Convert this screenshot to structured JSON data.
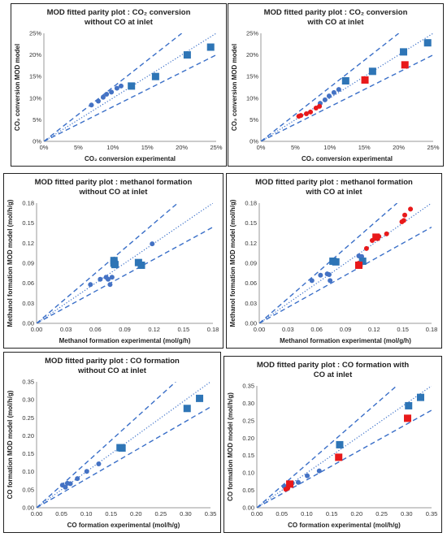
{
  "chart_data": [
    {
      "type": "scatter",
      "title": "MOD fitted parity plot : CO₂ conversion without CO at inlet",
      "xlabel": "CO₂ conversion experimental",
      "ylabel": "CO₂ conversion MOD  model",
      "xlim": [
        0,
        25
      ],
      "ylim": [
        0,
        25
      ],
      "ticks": [
        "0%",
        "5%",
        "10%",
        "15%",
        "20%",
        "25%"
      ],
      "tick_values": [
        0,
        5,
        10,
        15,
        20,
        25
      ],
      "grid": false,
      "series": [
        {
          "marker": "circle",
          "color": "#4472C4",
          "points": [
            [
              6.9,
              8.4
            ],
            [
              7.9,
              9.3
            ],
            [
              8.6,
              10.2
            ],
            [
              9.1,
              10.9
            ],
            [
              9.8,
              11.4
            ],
            [
              10.6,
              12.3
            ],
            [
              11.2,
              12.8
            ]
          ]
        },
        {
          "marker": "square",
          "color": "#2E75B6",
          "points": [
            [
              12.7,
              12.8
            ],
            [
              16.2,
              15.0
            ],
            [
              20.8,
              20.0
            ],
            [
              24.2,
              21.8
            ]
          ]
        }
      ],
      "lines": [
        {
          "style": "dotted",
          "slope": 1.0
        },
        {
          "style": "dashed",
          "slope": 1.25
        },
        {
          "style": "dashed",
          "slope": 0.8
        }
      ]
    },
    {
      "type": "scatter",
      "title": "MOD fitted parity plot : CO₂ conversion with CO at inlet",
      "xlabel": "CO₂ conversion experimental",
      "ylabel": "CO₂ conversion MOD  model",
      "xlim": [
        0,
        25
      ],
      "ylim": [
        0,
        25
      ],
      "ticks": [
        "0%",
        "5%",
        "10%",
        "15%",
        "20%",
        "25%"
      ],
      "tick_values": [
        0,
        5,
        10,
        15,
        20,
        25
      ],
      "grid": false,
      "series": [
        {
          "marker": "circle",
          "color": "#4472C4",
          "points": [
            [
              8.6,
              8.8
            ],
            [
              9.3,
              9.6
            ],
            [
              9.9,
              10.5
            ],
            [
              10.6,
              11.3
            ],
            [
              11.3,
              12.0
            ]
          ]
        },
        {
          "marker": "circle",
          "color": "#E8191A",
          "points": [
            [
              5.5,
              5.8
            ],
            [
              5.8,
              6.0
            ],
            [
              6.6,
              6.4
            ],
            [
              7.2,
              6.8
            ],
            [
              8.0,
              7.7
            ],
            [
              8.5,
              8.1
            ]
          ]
        },
        {
          "marker": "square",
          "color": "#2E75B6",
          "points": [
            [
              12.3,
              14.0
            ],
            [
              16.2,
              16.2
            ],
            [
              20.7,
              20.7
            ],
            [
              24.2,
              22.8
            ]
          ]
        },
        {
          "marker": "square",
          "color": "#E8191A",
          "points": [
            [
              15.1,
              14.2
            ],
            [
              20.9,
              17.7
            ]
          ]
        }
      ],
      "lines": [
        {
          "style": "dotted",
          "slope": 1.0
        },
        {
          "style": "dashed",
          "slope": 1.25
        },
        {
          "style": "dashed",
          "slope": 0.8
        }
      ]
    },
    {
      "type": "scatter",
      "title": "MOD fitted parity plot : methanol formation without CO at inlet",
      "xlabel": "Methanol formation experimental (mol/g/h)",
      "ylabel": "Methanol formation MOD model (mol/h/g)",
      "xlim": [
        0,
        0.18
      ],
      "ylim": [
        0,
        0.18
      ],
      "ticks": [
        "0.00",
        "0.03",
        "0.06",
        "0.09",
        "0.12",
        "0.15",
        "0.18"
      ],
      "tick_values": [
        0,
        0.03,
        0.06,
        0.09,
        0.12,
        0.15,
        0.18
      ],
      "grid": false,
      "series": [
        {
          "marker": "circle",
          "color": "#4472C4",
          "points": [
            [
              0.055,
              0.058
            ],
            [
              0.065,
              0.066
            ],
            [
              0.071,
              0.069
            ],
            [
              0.073,
              0.066
            ],
            [
              0.075,
              0.058
            ],
            [
              0.077,
              0.069
            ],
            [
              0.118,
              0.119
            ]
          ]
        },
        {
          "marker": "square",
          "color": "#2E75B6",
          "points": [
            [
              0.079,
              0.094
            ],
            [
              0.079,
              0.09
            ],
            [
              0.08,
              0.088
            ],
            [
              0.104,
              0.091
            ],
            [
              0.107,
              0.087
            ]
          ]
        }
      ],
      "lines": [
        {
          "style": "dotted",
          "slope": 1.0
        },
        {
          "style": "dashed",
          "slope": 1.25
        },
        {
          "style": "dashed",
          "slope": 0.8
        }
      ]
    },
    {
      "type": "scatter",
      "title": "MOD fitted parity plot : methanol formation with CO at inlet",
      "xlabel": "Methanol formation experimental (mol/g/h)",
      "ylabel": "Methanol formation MOD model (mol/h/g)",
      "xlim": [
        0,
        0.18
      ],
      "ylim": [
        0,
        0.18
      ],
      "ticks": [
        "0.00",
        "0.03",
        "0.06",
        "0.09",
        "0.12",
        "0.15",
        "0.18"
      ],
      "tick_values": [
        0,
        0.03,
        0.06,
        0.09,
        0.12,
        0.15,
        0.18
      ],
      "grid": false,
      "series": [
        {
          "marker": "circle",
          "color": "#4472C4",
          "points": [
            [
              0.055,
              0.064
            ],
            [
              0.064,
              0.072
            ],
            [
              0.071,
              0.074
            ],
            [
              0.073,
              0.073
            ],
            [
              0.074,
              0.064
            ],
            [
              0.077,
              0.092
            ],
            [
              0.104,
              0.101
            ],
            [
              0.107,
              0.1
            ]
          ]
        },
        {
          "marker": "circle",
          "color": "#E8191A",
          "points": [
            [
              0.104,
              0.09
            ],
            [
              0.112,
              0.112
            ],
            [
              0.118,
              0.124
            ],
            [
              0.125,
              0.13
            ],
            [
              0.133,
              0.134
            ],
            [
              0.149,
              0.152
            ],
            [
              0.151,
              0.154
            ],
            [
              0.152,
              0.162
            ],
            [
              0.158,
              0.171
            ]
          ]
        },
        {
          "marker": "square",
          "color": "#2E75B6",
          "points": [
            [
              0.077,
              0.093
            ],
            [
              0.08,
              0.092
            ],
            [
              0.108,
              0.093
            ]
          ]
        },
        {
          "marker": "square",
          "color": "#E8191A",
          "points": [
            [
              0.104,
              0.087
            ],
            [
              0.122,
              0.129
            ]
          ]
        }
      ],
      "lines": [
        {
          "style": "dotted",
          "slope": 1.0
        },
        {
          "style": "dashed",
          "slope": 1.25
        },
        {
          "style": "dashed",
          "slope": 0.8
        }
      ]
    },
    {
      "type": "scatter",
      "title": "MOD fitted parity plot : CO formation without CO at inlet",
      "xlabel": "CO formation experimental (mol/h/g)",
      "ylabel": "CO formation MOD model (mol/h/g)",
      "xlim": [
        0,
        0.35
      ],
      "ylim": [
        0,
        0.35
      ],
      "ticks": [
        "0.00",
        "0.05",
        "0.10",
        "0.15",
        "0.20",
        "0.25",
        "0.30",
        "0.35"
      ],
      "tick_values": [
        0,
        0.05,
        0.1,
        0.15,
        0.2,
        0.25,
        0.3,
        0.35
      ],
      "grid": false,
      "series": [
        {
          "marker": "circle",
          "color": "#4472C4",
          "points": [
            [
              0.052,
              0.063
            ],
            [
              0.058,
              0.057
            ],
            [
              0.062,
              0.068
            ],
            [
              0.068,
              0.067
            ],
            [
              0.082,
              0.081
            ],
            [
              0.101,
              0.101
            ],
            [
              0.125,
              0.122
            ]
          ]
        },
        {
          "marker": "square",
          "color": "#2E75B6",
          "points": [
            [
              0.168,
              0.167
            ],
            [
              0.172,
              0.166
            ],
            [
              0.303,
              0.276
            ],
            [
              0.328,
              0.304
            ]
          ]
        }
      ],
      "lines": [
        {
          "style": "dotted",
          "slope": 1.0
        },
        {
          "style": "dashed",
          "slope": 1.25
        },
        {
          "style": "dashed",
          "slope": 0.8
        }
      ]
    },
    {
      "type": "scatter",
      "title": "MOD fitted parity plot : CO formation with CO at inlet",
      "xlabel": "CO formation experimental (mol/h/g)",
      "ylabel": "CO formation MOD model (mol/h/g)",
      "xlim": [
        0,
        0.35
      ],
      "ylim": [
        0,
        0.35
      ],
      "ticks": [
        "0.00",
        "0.05",
        "0.10",
        "0.15",
        "0.20",
        "0.25",
        "0.30",
        "0.35"
      ],
      "tick_values": [
        0,
        0.05,
        0.1,
        0.15,
        0.2,
        0.25,
        0.3,
        0.35
      ],
      "grid": false,
      "series": [
        {
          "marker": "circle",
          "color": "#4472C4",
          "points": [
            [
              0.055,
              0.061
            ],
            [
              0.062,
              0.064
            ],
            [
              0.067,
              0.069
            ],
            [
              0.071,
              0.071
            ],
            [
              0.083,
              0.073
            ],
            [
              0.101,
              0.092
            ],
            [
              0.125,
              0.106
            ]
          ]
        },
        {
          "marker": "circle",
          "color": "#E8191A",
          "points": [
            [
              0.058,
              0.053
            ],
            [
              0.062,
              0.056
            ]
          ]
        },
        {
          "marker": "square",
          "color": "#2E75B6",
          "points": [
            [
              0.166,
              0.181
            ],
            [
              0.304,
              0.293
            ],
            [
              0.328,
              0.317
            ]
          ]
        },
        {
          "marker": "square",
          "color": "#E8191A",
          "points": [
            [
              0.066,
              0.068
            ],
            [
              0.164,
              0.145
            ],
            [
              0.302,
              0.257
            ]
          ]
        }
      ],
      "lines": [
        {
          "style": "dotted",
          "slope": 1.0
        },
        {
          "style": "dashed",
          "slope": 1.25
        },
        {
          "style": "dashed",
          "slope": 0.8
        }
      ]
    }
  ]
}
